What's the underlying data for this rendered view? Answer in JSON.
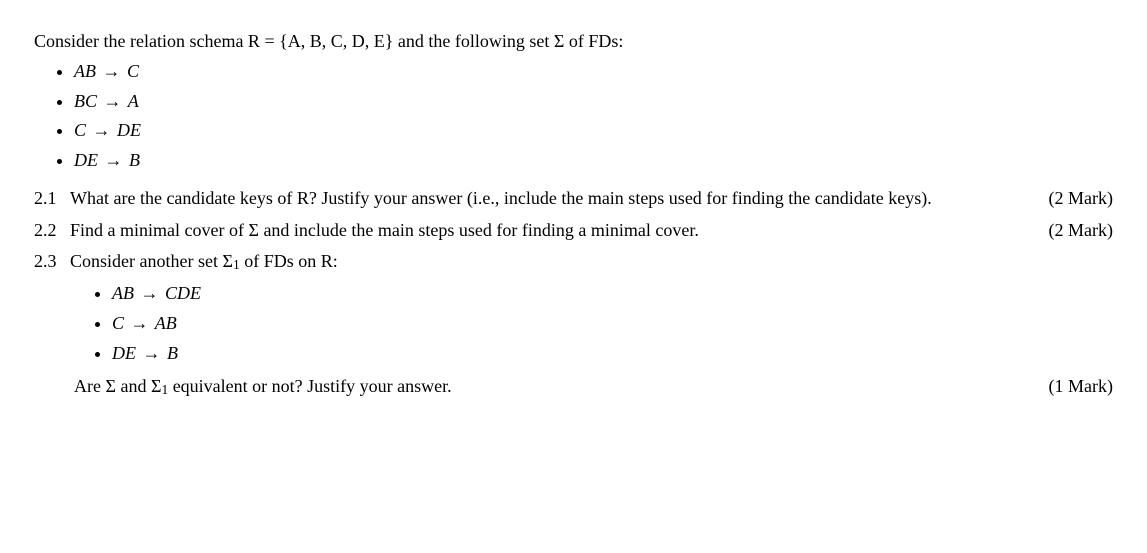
{
  "intro": "Consider the relation schema R = {A, B, C, D, E} and the following set Σ of FDs:",
  "fds": [
    {
      "lhs": "AB",
      "rhs": "C"
    },
    {
      "lhs": "BC",
      "rhs": "A"
    },
    {
      "lhs": "C",
      "rhs": "DE"
    },
    {
      "lhs": "DE",
      "rhs": "B"
    }
  ],
  "q21": {
    "num": "2.1",
    "text": "What are the candidate keys of R? Justify your answer (i.e., include the main steps used for finding the candidate keys).",
    "mark": "(2 Mark)"
  },
  "q22": {
    "num": "2.2",
    "text": "Find a minimal cover of Σ and include the main steps used for finding a minimal cover.",
    "mark": "(2 Mark)"
  },
  "q23": {
    "num": "2.3",
    "intro_prefix": "Consider another set ",
    "intro_sigma": "Σ",
    "intro_sub": "1",
    "intro_suffix": " of FDs on R:",
    "fds": [
      {
        "lhs": "AB",
        "rhs": "CDE"
      },
      {
        "lhs": "C",
        "rhs": "AB"
      },
      {
        "lhs": "DE",
        "rhs": "B"
      }
    ],
    "final_prefix": "Are Σ and ",
    "final_sigma": "Σ",
    "final_sub": "1",
    "final_suffix": " equivalent or not? Justify your answer.",
    "mark": "(1 Mark)"
  }
}
